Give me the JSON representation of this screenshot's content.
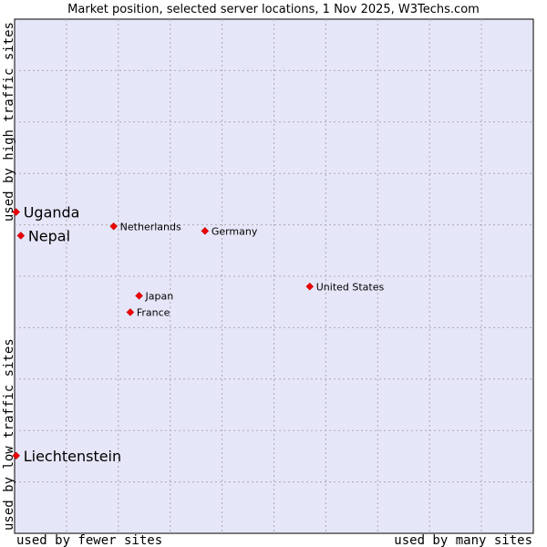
{
  "chart_data": {
    "type": "scatter",
    "title": "Market position, selected server locations, 1 Nov 2025, W3Techs.com",
    "xlabel_left": "used by fewer sites",
    "xlabel_right": "used by many sites",
    "ylabel_bottom": "used by low traffic sites",
    "ylabel_top": "used by high traffic sites",
    "xlim": [
      0,
      100
    ],
    "ylim": [
      0,
      100
    ],
    "grid": true,
    "colors": {
      "plot_background": "#e6e6f9",
      "grid": "#aaaaaa",
      "point": "#ee0000",
      "text": "#000000"
    },
    "points": [
      {
        "label": "Uganda",
        "x": 0.3,
        "y": 62.5,
        "emphasis": true
      },
      {
        "label": "Nepal",
        "x": 1.2,
        "y": 57.9,
        "emphasis": true
      },
      {
        "label": "Liechtenstein",
        "x": 0.3,
        "y": 15.1,
        "emphasis": true
      },
      {
        "label": "Netherlands",
        "x": 19.1,
        "y": 59.7,
        "emphasis": false
      },
      {
        "label": "Germany",
        "x": 36.7,
        "y": 58.8,
        "emphasis": false
      },
      {
        "label": "United States",
        "x": 56.9,
        "y": 48.0,
        "emphasis": false
      },
      {
        "label": "Japan",
        "x": 24.0,
        "y": 46.2,
        "emphasis": false
      },
      {
        "label": "France",
        "x": 22.3,
        "y": 43.0,
        "emphasis": false
      }
    ]
  }
}
